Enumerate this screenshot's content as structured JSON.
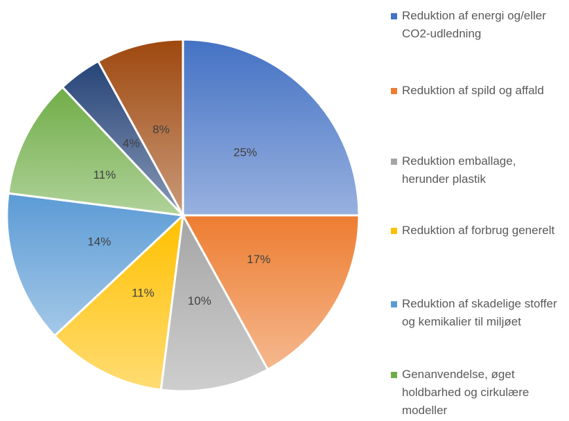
{
  "chart_data": {
    "type": "pie",
    "categories": [
      "Reduktion af energi og/eller CO2-udledning",
      "Reduktion af spild og affald",
      "Reduktion emballage, herunder plastik",
      "Reduktion af forbrug generelt",
      "Reduktion af skadelige stoffer og kemikalier til miljøet",
      "Genanvendelse, øget holdbarhed og cirkulære modeller",
      null,
      null
    ],
    "values": [
      25,
      17,
      10,
      11,
      14,
      11,
      4,
      8
    ],
    "value_labels": [
      "25%",
      "17%",
      "10%",
      "11%",
      "14%",
      "11%",
      "4%",
      "8%"
    ],
    "colors": [
      "#4472c4",
      "#ed7d31",
      "#a5a5a5",
      "#ffc000",
      "#5b9bd5",
      "#70ad47",
      "#264478",
      "#9e480e"
    ]
  }
}
